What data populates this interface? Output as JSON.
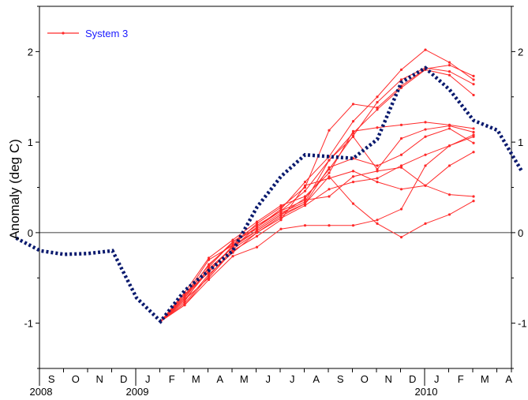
{
  "chart_data": {
    "type": "line",
    "ylabel": "Anomaly (deg C)",
    "ylim": [
      -1.5,
      2.5
    ],
    "y_ticks": [
      -1,
      0,
      1,
      2
    ],
    "y_tick_labels": [
      "-1",
      "0",
      "1",
      "2"
    ],
    "x_tick_labels": [
      "S",
      "O",
      "N",
      "D",
      "J",
      "F",
      "M",
      "A",
      "M",
      "J",
      "J",
      "A",
      "S",
      "O",
      "N",
      "D",
      "J",
      "F",
      "M",
      "A"
    ],
    "year_labels": [
      {
        "text": "2008",
        "index": 0
      },
      {
        "text": "2009",
        "index": 4
      },
      {
        "text": "2010",
        "index": 16
      }
    ],
    "zero_line": true,
    "grid": false,
    "legend_position": "top-left",
    "colors": {
      "observed": "#0a1a6e",
      "forecast": "#ff2a2a",
      "legend_text": "#1a1aff"
    },
    "observed": [
      -0.06,
      -0.2,
      -0.24,
      -0.23,
      -0.2,
      -0.72,
      -0.98,
      -0.64,
      -0.42,
      -0.2,
      0.28,
      0.62,
      0.86,
      0.84,
      0.82,
      1.03,
      1.66,
      1.82,
      1.58,
      1.24,
      1.13,
      0.68
    ],
    "series": [
      {
        "name": "System 3",
        "start_index": 6,
        "values": [
          -0.98,
          -0.7,
          -0.3,
          -0.14,
          0.1,
          0.28,
          0.5,
          1.13,
          1.42,
          1.38,
          1.62,
          1.81,
          1.85,
          1.73
        ]
      },
      {
        "values": [
          -0.98,
          -0.72,
          -0.35,
          -0.12,
          0.06,
          0.26,
          0.56,
          0.84,
          1.23,
          1.5,
          1.8,
          2.02,
          1.88,
          1.69
        ]
      },
      {
        "values": [
          -0.98,
          -0.74,
          -0.42,
          -0.16,
          0.02,
          0.2,
          0.38,
          0.7,
          1.07,
          1.44,
          1.69,
          1.82,
          1.78,
          1.64
        ]
      },
      {
        "values": [
          -0.98,
          -0.76,
          -0.38,
          -0.1,
          0.08,
          0.24,
          0.46,
          0.8,
          1.1,
          1.36,
          1.6,
          1.8,
          1.74,
          1.52
        ]
      },
      {
        "values": [
          -0.98,
          -0.66,
          -0.28,
          -0.08,
          0.12,
          0.3,
          0.4,
          0.66,
          1.12,
          1.16,
          1.19,
          1.22,
          1.19,
          1.15
        ]
      },
      {
        "values": [
          -0.98,
          -0.7,
          -0.36,
          -0.1,
          0.04,
          0.22,
          0.34,
          0.8,
          1.06,
          0.7,
          1.04,
          1.14,
          1.18,
          1.11
        ]
      },
      {
        "values": [
          -0.98,
          -0.8,
          -0.48,
          -0.18,
          0.0,
          0.18,
          0.32,
          0.72,
          0.82,
          0.74,
          0.86,
          1.06,
          1.15,
          0.99
        ]
      },
      {
        "values": [
          -0.98,
          -0.74,
          -0.5,
          -0.2,
          -0.04,
          0.14,
          0.52,
          0.6,
          0.68,
          0.56,
          0.48,
          0.52,
          0.42,
          0.4
        ]
      },
      {
        "values": [
          -0.98,
          -0.68,
          -0.44,
          -0.14,
          0.02,
          0.2,
          0.32,
          0.62,
          0.32,
          0.1,
          -0.05,
          0.1,
          0.2,
          0.35
        ]
      },
      {
        "values": [
          -0.98,
          -0.78,
          -0.46,
          -0.22,
          0.0,
          0.16,
          0.3,
          0.48,
          0.56,
          0.6,
          0.74,
          0.86,
          0.96,
          1.08
        ]
      },
      {
        "values": [
          -0.98,
          -0.72,
          -0.4,
          -0.16,
          0.06,
          0.24,
          0.36,
          0.4,
          0.62,
          0.68,
          0.72,
          0.52,
          0.74,
          0.89
        ]
      },
      {
        "values": [
          -0.98,
          -0.8,
          -0.52,
          -0.26,
          -0.16,
          0.04,
          0.08,
          0.08,
          0.08,
          0.14,
          0.26,
          0.74,
          0.96,
          1.06
        ]
      }
    ]
  }
}
